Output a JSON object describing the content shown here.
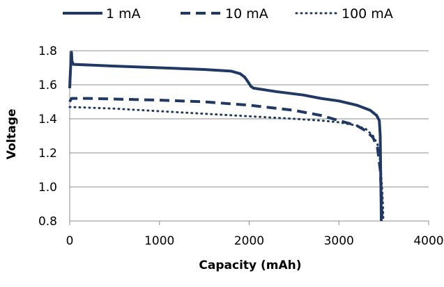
{
  "chart_data": {
    "type": "line",
    "title": "",
    "xlabel": "Capacity (mAh)",
    "ylabel": "Voltage",
    "xlim": [
      0,
      4000
    ],
    "ylim": [
      0.8,
      1.8
    ],
    "xticks": [
      0,
      1000,
      2000,
      3000,
      4000
    ],
    "yticks": [
      0.8,
      1.0,
      1.2,
      1.4,
      1.6,
      1.8
    ],
    "xtick_labels": [
      "0",
      "1000",
      "2000",
      "3000",
      "4000"
    ],
    "ytick_labels": [
      "0.8",
      "1.0",
      "1.2",
      "1.4",
      "1.6",
      "1.8"
    ],
    "grid": "horizontal",
    "legend_position": "top",
    "color": "#203864",
    "series": [
      {
        "name": "1 mA",
        "line_style": "solid",
        "points": [
          [
            0,
            1.58
          ],
          [
            5,
            1.64
          ],
          [
            10,
            1.7
          ],
          [
            15,
            1.76
          ],
          [
            20,
            1.79
          ],
          [
            25,
            1.74
          ],
          [
            40,
            1.72
          ],
          [
            500,
            1.71
          ],
          [
            1000,
            1.7
          ],
          [
            1500,
            1.69
          ],
          [
            1800,
            1.68
          ],
          [
            1900,
            1.665
          ],
          [
            1950,
            1.645
          ],
          [
            1990,
            1.615
          ],
          [
            2020,
            1.59
          ],
          [
            2050,
            1.58
          ],
          [
            2300,
            1.56
          ],
          [
            2600,
            1.54
          ],
          [
            2800,
            1.52
          ],
          [
            3000,
            1.505
          ],
          [
            3200,
            1.48
          ],
          [
            3350,
            1.45
          ],
          [
            3420,
            1.42
          ],
          [
            3450,
            1.39
          ],
          [
            3460,
            1.3
          ],
          [
            3465,
            1.1
          ],
          [
            3470,
            0.9
          ],
          [
            3472,
            0.8
          ]
        ]
      },
      {
        "name": "10 mA",
        "line_style": "dashed",
        "points": [
          [
            0,
            1.5
          ],
          [
            20,
            1.52
          ],
          [
            200,
            1.52
          ],
          [
            1000,
            1.51
          ],
          [
            1500,
            1.5
          ],
          [
            2000,
            1.48
          ],
          [
            2500,
            1.45
          ],
          [
            2800,
            1.42
          ],
          [
            3000,
            1.39
          ],
          [
            3200,
            1.36
          ],
          [
            3300,
            1.33
          ],
          [
            3380,
            1.29
          ],
          [
            3430,
            1.23
          ],
          [
            3460,
            1.1
          ],
          [
            3475,
            0.95
          ],
          [
            3480,
            0.8
          ]
        ]
      },
      {
        "name": "100 mA",
        "line_style": "dotted",
        "points": [
          [
            0,
            1.47
          ],
          [
            500,
            1.46
          ],
          [
            1000,
            1.445
          ],
          [
            1500,
            1.43
          ],
          [
            2000,
            1.415
          ],
          [
            2500,
            1.4
          ],
          [
            2800,
            1.39
          ],
          [
            3000,
            1.38
          ],
          [
            3200,
            1.36
          ],
          [
            3300,
            1.34
          ],
          [
            3380,
            1.3
          ],
          [
            3430,
            1.25
          ],
          [
            3460,
            1.15
          ],
          [
            3480,
            1.0
          ],
          [
            3490,
            0.9
          ],
          [
            3495,
            0.8
          ]
        ]
      }
    ]
  }
}
